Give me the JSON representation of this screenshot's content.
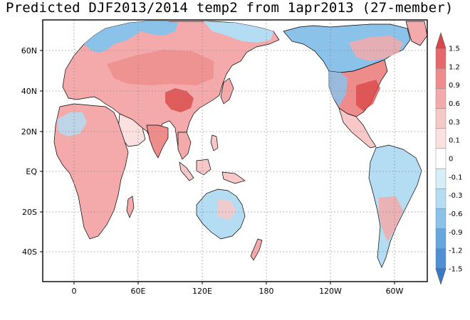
{
  "title": "Predicted DJF2013/2014 temp2 from 1apr2013 (27-member)",
  "map": {
    "lat_labels": [
      "60N",
      "40N",
      "20N",
      "EQ",
      "20S",
      "40S"
    ],
    "lon_labels": [
      "0",
      "60E",
      "120E",
      "180",
      "120W",
      "60W"
    ],
    "grid": "dotted",
    "central_longitude": 180
  },
  "colorbar": {
    "labels": [
      "1.5",
      "1.2",
      "0.9",
      "0.6",
      "0.3",
      "0.1",
      "0",
      "-0.1",
      "-0.3",
      "-0.6",
      "-0.9",
      "-1.2",
      "-1.5"
    ],
    "colors": [
      "#d94848",
      "#e6686a",
      "#ee8c8c",
      "#f4aaaa",
      "#f8c8c8",
      "#fbe0e0",
      "#ffffff",
      "#d6eef8",
      "#b4dcf2",
      "#8ac2ea",
      "#66a8de",
      "#4f90d4",
      "#3a78c8"
    ],
    "positive_color": "#e67a7a",
    "negative_color": "#6aaee4"
  }
}
